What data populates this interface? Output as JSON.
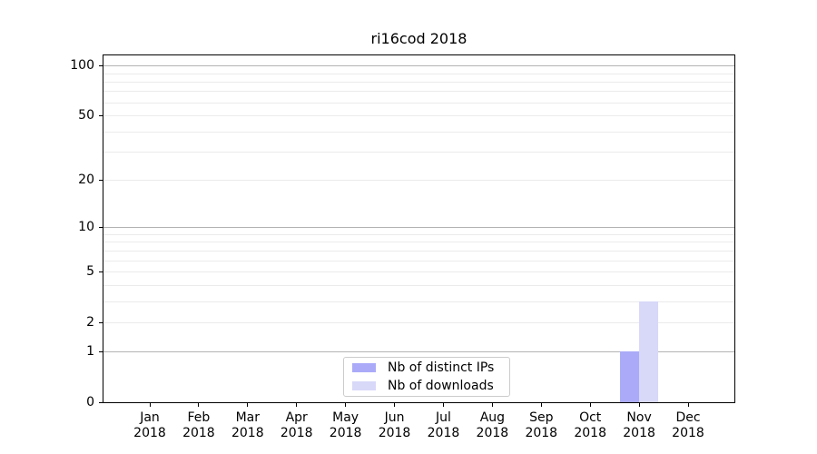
{
  "chart_data": {
    "type": "bar",
    "title": "ri16cod 2018",
    "categories": [
      "Jan",
      "Feb",
      "Mar",
      "Apr",
      "May",
      "Jun",
      "Jul",
      "Aug",
      "Sep",
      "Oct",
      "Nov",
      "Dec"
    ],
    "category_year": "2018",
    "series": [
      {
        "name": "Nb of distinct IPs",
        "color": "#aaaaf9",
        "values": [
          0,
          0,
          0,
          0,
          0,
          0,
          0,
          0,
          0,
          0,
          1,
          0
        ]
      },
      {
        "name": "Nb of downloads",
        "color": "#d8d8f9",
        "values": [
          0,
          0,
          0,
          0,
          0,
          0,
          0,
          0,
          0,
          0,
          3,
          0
        ]
      }
    ],
    "yscale": "log10(1+v)",
    "ylim": [
      0,
      115
    ],
    "yticks": [
      0,
      1,
      2,
      5,
      10,
      20,
      50,
      100
    ],
    "major_gridlines": [
      1,
      10,
      100
    ],
    "minor_gridlines": [
      2,
      3,
      4,
      5,
      6,
      7,
      8,
      9,
      20,
      30,
      40,
      50,
      60,
      70,
      80,
      90
    ],
    "grid": true,
    "legend_position": "lower center",
    "xlabel": "",
    "ylabel": ""
  },
  "colors": {
    "bar_distinct_ips": "#aaaaf9",
    "bar_downloads": "#d8d8f9",
    "major_grid": "#b3b3b3",
    "minor_grid": "#ebebeb",
    "axis_frame": "#000000",
    "legend_border": "#cccccc",
    "background": "#ffffff"
  }
}
